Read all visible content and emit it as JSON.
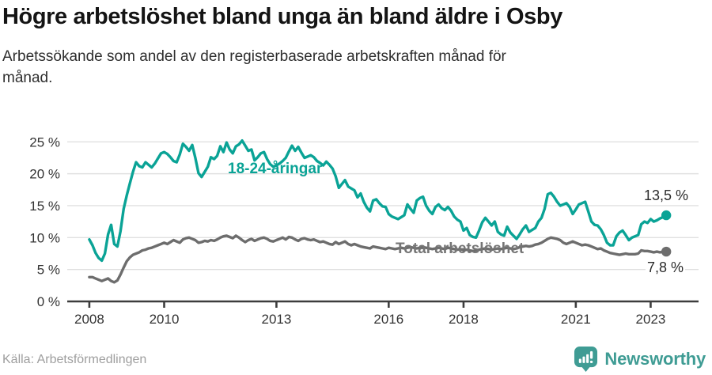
{
  "header": {
    "title": "Högre arbetslöshet bland unga än bland äldre i Osby",
    "subtitle_line1": "Arbetssökande som andel av den registerbaserade arbetskraften månad för",
    "subtitle_line2": "månad."
  },
  "footer": {
    "source": "Källa: Arbetsförmedlingen",
    "brand": "Newsworthy",
    "brand_color": "#3f9c94"
  },
  "chart_data": {
    "type": "line",
    "x_unit": "decimal_year_monthly",
    "x_start": 2008.0,
    "points_per_year": 12,
    "x_domain": [
      2007.41,
      2024.28
    ],
    "y_domain": [
      0,
      26.4
    ],
    "grid": "horizontal",
    "axis_color": "#3d3d3d",
    "grid_color": "#e0e0e0",
    "x_ticks": [
      {
        "value": 2008,
        "label": "2008"
      },
      {
        "value": 2010,
        "label": "2010"
      },
      {
        "value": 2013,
        "label": "2013"
      },
      {
        "value": 2016,
        "label": "2016"
      },
      {
        "value": 2018,
        "label": "2018"
      },
      {
        "value": 2021,
        "label": "2021"
      },
      {
        "value": 2023,
        "label": "2023"
      }
    ],
    "y_ticks": [
      {
        "value": 0,
        "label": "0 %"
      },
      {
        "value": 5,
        "label": "5 %"
      },
      {
        "value": 10,
        "label": "10 %"
      },
      {
        "value": 15,
        "label": "15 %"
      },
      {
        "value": 20,
        "label": "20 %"
      },
      {
        "value": 25,
        "label": "25 %"
      }
    ],
    "series": [
      {
        "id": "young",
        "name": "18-24-åringar",
        "color": "#0aa396",
        "last_value_label": "13,5 %",
        "values": [
          9.7,
          8.8,
          7.6,
          6.8,
          6.4,
          7.5,
          10.5,
          12.0,
          9.0,
          8.6,
          11.0,
          14.5,
          16.6,
          18.5,
          20.3,
          21.8,
          21.2,
          21.0,
          21.8,
          21.4,
          21.0,
          21.6,
          22.4,
          23.2,
          23.4,
          23.1,
          22.6,
          22.0,
          21.8,
          23.0,
          24.7,
          24.2,
          23.6,
          24.5,
          22.5,
          20.1,
          19.5,
          20.3,
          21.1,
          22.6,
          22.3,
          22.8,
          24.3,
          23.4,
          24.9,
          23.8,
          23.2,
          24.3,
          24.6,
          25.2,
          24.4,
          23.6,
          23.8,
          22.1,
          22.6,
          23.2,
          23.4,
          22.3,
          21.5,
          21.1,
          21.3,
          21.6,
          22.0,
          22.5,
          23.5,
          24.4,
          23.6,
          24.2,
          23.3,
          22.5,
          22.7,
          22.9,
          22.6,
          22.0,
          21.7,
          21.3,
          21.9,
          21.4,
          20.8,
          19.6,
          17.8,
          18.4,
          19.0,
          18.0,
          17.7,
          17.4,
          16.3,
          16.9,
          15.6,
          14.7,
          14.1,
          15.8,
          16.0,
          15.4,
          14.9,
          14.8,
          13.7,
          13.3,
          13.1,
          12.9,
          13.2,
          13.5,
          15.2,
          14.5,
          13.9,
          15.8,
          16.2,
          16.4,
          15.0,
          14.2,
          13.7,
          14.8,
          15.2,
          14.6,
          14.3,
          14.8,
          14.2,
          13.3,
          12.8,
          12.5,
          11.1,
          11.5,
          10.4,
          10.1,
          10.0,
          11.1,
          12.4,
          13.1,
          12.5,
          11.9,
          12.5,
          10.9,
          10.5,
          10.3,
          11.7,
          10.8,
          10.3,
          9.8,
          10.5,
          11.3,
          11.9,
          10.9,
          11.2,
          11.5,
          12.5,
          13.1,
          14.5,
          16.8,
          17.0,
          16.4,
          15.6,
          15.0,
          15.2,
          15.4,
          14.8,
          13.7,
          14.4,
          15.2,
          15.4,
          15.6,
          14.1,
          12.5,
          12.0,
          11.9,
          11.3,
          10.4,
          9.2,
          8.8,
          8.8,
          10.2,
          10.8,
          11.1,
          10.4,
          9.6,
          10.0,
          10.2,
          10.4,
          12.1,
          12.5,
          12.3,
          12.9,
          12.5,
          12.7,
          13.0,
          13.2,
          13.5
        ]
      },
      {
        "id": "total",
        "name": "Total arbetslöshet",
        "color": "#6d6d6d",
        "last_value_label": "7,8 %",
        "values": [
          3.8,
          3.8,
          3.6,
          3.4,
          3.2,
          3.4,
          3.6,
          3.2,
          3.0,
          3.3,
          4.2,
          5.3,
          6.3,
          6.9,
          7.3,
          7.5,
          7.7,
          8.0,
          8.1,
          8.3,
          8.4,
          8.6,
          8.8,
          9.0,
          9.2,
          9.0,
          9.3,
          9.6,
          9.4,
          9.2,
          9.7,
          9.9,
          10.0,
          9.8,
          9.6,
          9.2,
          9.3,
          9.5,
          9.4,
          9.6,
          9.5,
          9.7,
          10.0,
          10.2,
          10.3,
          10.1,
          9.9,
          10.3,
          10.0,
          9.6,
          9.3,
          9.6,
          9.8,
          9.5,
          9.7,
          9.9,
          10.0,
          9.8,
          9.5,
          9.4,
          9.6,
          9.8,
          10.0,
          9.7,
          10.1,
          10.0,
          9.7,
          9.5,
          9.8,
          9.9,
          9.7,
          9.6,
          9.7,
          9.5,
          9.3,
          9.4,
          9.2,
          9.0,
          8.9,
          9.3,
          9.0,
          9.2,
          9.4,
          9.0,
          8.8,
          9.0,
          8.8,
          8.6,
          8.5,
          8.4,
          8.3,
          8.6,
          8.5,
          8.4,
          8.3,
          8.2,
          8.4,
          8.3,
          8.2,
          8.3,
          8.4,
          8.3,
          8.4,
          8.5,
          8.4,
          8.3,
          8.4,
          8.5,
          8.4,
          8.3,
          8.2,
          8.3,
          8.4,
          8.3,
          8.2,
          8.4,
          8.3,
          8.2,
          8.1,
          8.2,
          8.0,
          8.1,
          8.0,
          7.9,
          8.0,
          8.1,
          8.2,
          8.3,
          8.2,
          8.1,
          8.2,
          8.3,
          8.2,
          8.3,
          8.4,
          8.3,
          8.2,
          8.3,
          8.5,
          8.6,
          8.7,
          8.6,
          8.7,
          8.9,
          9.0,
          9.2,
          9.5,
          9.8,
          10.0,
          9.9,
          9.8,
          9.6,
          9.2,
          9.0,
          9.2,
          9.4,
          9.2,
          9.0,
          8.8,
          8.9,
          8.8,
          8.6,
          8.4,
          8.2,
          8.3,
          8.0,
          7.8,
          7.6,
          7.5,
          7.4,
          7.3,
          7.4,
          7.5,
          7.4,
          7.4,
          7.4,
          7.5,
          8.0,
          7.9,
          7.9,
          7.8,
          7.7,
          7.8,
          7.7,
          7.8,
          7.8
        ]
      }
    ]
  }
}
